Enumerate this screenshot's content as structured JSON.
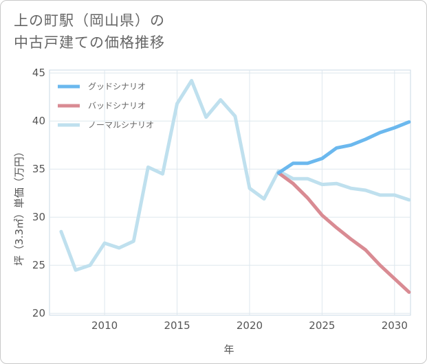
{
  "title": {
    "line1": "上の町駅（岡山県）の",
    "line2": "中古戸建ての価格推移"
  },
  "chart_data": {
    "type": "line",
    "xlabel": "年",
    "ylabel": "坪（3.3㎡）単価（万円）",
    "xlim": [
      2006.2,
      2031.1
    ],
    "ylim": [
      19.8,
      45.3
    ],
    "xticks": [
      2010,
      2015,
      2020,
      2025,
      2030
    ],
    "yticks": [
      20,
      25,
      30,
      35,
      40,
      45
    ],
    "grid": true,
    "legend_position": "top-left",
    "series": [
      {
        "name": "グッドシナリオ",
        "color": "#6bb8ee",
        "x": [
          2022,
          2023,
          2024,
          2025,
          2026,
          2027,
          2028,
          2029,
          2030,
          2031
        ],
        "y": [
          34.6,
          35.6,
          35.6,
          36.1,
          37.2,
          37.5,
          38.1,
          38.8,
          39.3,
          39.9
        ]
      },
      {
        "name": "バッドシナリオ",
        "color": "#d98b93",
        "x": [
          2022,
          2023,
          2024,
          2025,
          2026,
          2027,
          2028,
          2029,
          2030,
          2031
        ],
        "y": [
          34.6,
          33.5,
          32.0,
          30.2,
          28.9,
          27.7,
          26.6,
          25.0,
          23.6,
          22.2
        ]
      },
      {
        "name": "ノーマルシナリオ",
        "color": "#bfe0ee",
        "x": [
          2007,
          2008,
          2009,
          2010,
          2011,
          2012,
          2013,
          2014,
          2015,
          2016,
          2017,
          2018,
          2019,
          2020,
          2021,
          2022,
          2023,
          2024,
          2025,
          2026,
          2027,
          2028,
          2029,
          2030,
          2031
        ],
        "y": [
          28.5,
          24.5,
          25.0,
          27.3,
          26.8,
          27.5,
          35.2,
          34.5,
          41.8,
          44.2,
          40.4,
          42.2,
          40.5,
          33.0,
          31.9,
          34.8,
          34.0,
          34.0,
          33.4,
          33.5,
          33.0,
          32.8,
          32.3,
          32.3,
          31.8
        ]
      }
    ]
  }
}
